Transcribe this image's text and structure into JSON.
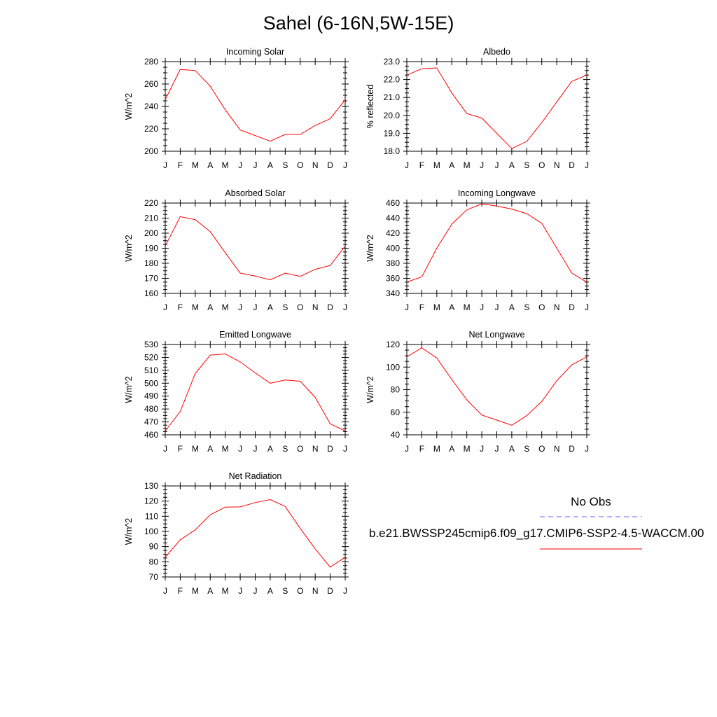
{
  "title": "Sahel (6-16N,5W-15E)",
  "months": [
    "J",
    "F",
    "M",
    "A",
    "M",
    "J",
    "J",
    "A",
    "S",
    "O",
    "N",
    "D",
    "J"
  ],
  "line_color": "#ff0000",
  "obs_color": "#0000ff",
  "legend": {
    "obs_label": "No Obs",
    "model_label": "b.e21.BWSSP245cmip6.f09_g17.CMIP6-SSP2-4.5-WACCM.00"
  },
  "chart_data": [
    {
      "type": "line",
      "title": "Incoming Solar",
      "ylabel": "W/m^2",
      "ylim": [
        200,
        280
      ],
      "yticks": [
        200,
        220,
        240,
        260,
        280
      ],
      "ytick_labels": [
        "200",
        "220",
        "240",
        "260",
        "280"
      ],
      "series": [
        {
          "values": [
            246,
            273,
            272,
            258,
            237,
            219,
            214,
            209,
            215,
            215,
            223,
            229,
            246
          ]
        }
      ]
    },
    {
      "type": "line",
      "title": "Albedo",
      "ylabel": "% reflected",
      "ylim": [
        18,
        23
      ],
      "yticks": [
        18,
        19,
        20,
        21,
        22,
        23
      ],
      "ytick_labels": [
        "18.0",
        "19.0",
        "20.0",
        "21.0",
        "22.0",
        "23.0"
      ],
      "series": [
        {
          "values": [
            22.25,
            22.6,
            22.65,
            21.25,
            20.1,
            19.85,
            19.0,
            18.15,
            18.55,
            19.6,
            20.75,
            21.9,
            22.25
          ]
        }
      ]
    },
    {
      "type": "line",
      "title": "Absorbed Solar",
      "ylabel": "W/m^2",
      "ylim": [
        160,
        220
      ],
      "yticks": [
        160,
        170,
        180,
        190,
        200,
        210,
        220
      ],
      "ytick_labels": [
        "160",
        "170",
        "180",
        "190",
        "200",
        "210",
        "220"
      ],
      "series": [
        {
          "values": [
            191.5,
            211,
            209,
            201,
            187,
            173.5,
            171.5,
            169,
            173.5,
            171.3,
            176,
            178.5,
            191.5
          ]
        }
      ]
    },
    {
      "type": "line",
      "title": "Incoming Longwave",
      "ylabel": "W/m^2",
      "ylim": [
        340,
        460
      ],
      "yticks": [
        340,
        360,
        380,
        400,
        420,
        440,
        460
      ],
      "ytick_labels": [
        "340",
        "360",
        "380",
        "400",
        "420",
        "440",
        "460"
      ],
      "series": [
        {
          "values": [
            355,
            362,
            400,
            432,
            451,
            459,
            456,
            452,
            446,
            433,
            400,
            367,
            355
          ]
        }
      ]
    },
    {
      "type": "line",
      "title": "Emitted Longwave",
      "ylabel": "W/m^2",
      "ylim": [
        460,
        530
      ],
      "yticks": [
        460,
        470,
        480,
        490,
        500,
        510,
        520,
        530
      ],
      "ytick_labels": [
        "460",
        "470",
        "480",
        "490",
        "500",
        "510",
        "520",
        "530"
      ],
      "series": [
        {
          "values": [
            463,
            478,
            507.5,
            521.8,
            522.7,
            516.5,
            508,
            500,
            502.5,
            501.5,
            489,
            468.5,
            463
          ]
        }
      ]
    },
    {
      "type": "line",
      "title": "Net Longwave",
      "ylabel": "W/m^2",
      "ylim": [
        40,
        120
      ],
      "yticks": [
        40,
        60,
        80,
        100,
        120
      ],
      "ytick_labels": [
        "40",
        "60",
        "80",
        "100",
        "120"
      ],
      "series": [
        {
          "values": [
            109,
            117,
            108,
            89,
            71,
            57.5,
            53,
            48.5,
            57,
            69.5,
            88,
            102,
            109
          ]
        }
      ]
    },
    {
      "type": "line",
      "title": "Net Radiation",
      "ylabel": "W/m^2",
      "ylim": [
        70,
        130
      ],
      "yticks": [
        70,
        80,
        90,
        100,
        110,
        120,
        130
      ],
      "ytick_labels": [
        "70",
        "80",
        "90",
        "100",
        "110",
        "120",
        "130"
      ],
      "series": [
        {
          "values": [
            83,
            94.5,
            101,
            111,
            116,
            116.2,
            119,
            121,
            116.5,
            102,
            88.5,
            76.5,
            83
          ]
        }
      ]
    }
  ]
}
